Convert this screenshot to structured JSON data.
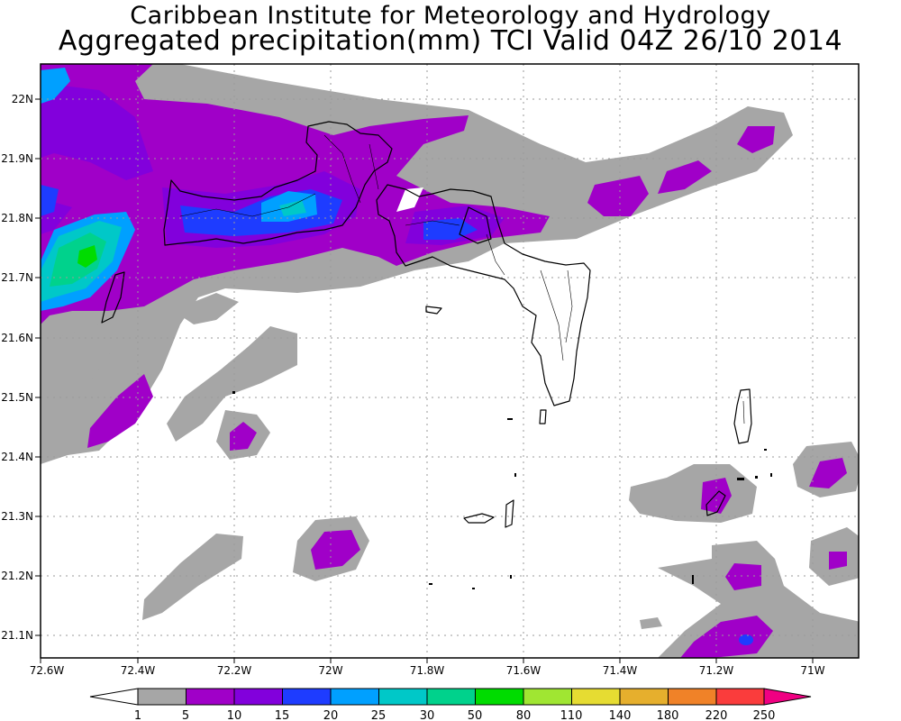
{
  "title": "Caribbean Institute for Meteorology and Hydrology",
  "subtitle": "Aggregated precipitation(mm) TCI Valid 04Z 26/10 2014",
  "map": {
    "lon_labels": [
      "72.6W",
      "72.4W",
      "72.2W",
      "72W",
      "71.8W",
      "71.6W",
      "71.4W",
      "71.2W",
      "71W"
    ],
    "lat_labels": [
      "22N",
      "21.9N",
      "21.8N",
      "21.7N",
      "21.6N",
      "21.5N",
      "21.4N",
      "21.3N",
      "21.2N",
      "21.1N"
    ],
    "lon_range": [
      -72.6,
      -70.9
    ],
    "lat_range": [
      21.06,
      22.06
    ],
    "grid": "dotted"
  },
  "legend": {
    "labels": [
      "1",
      "5",
      "10",
      "15",
      "20",
      "25",
      "30",
      "50",
      "80",
      "110",
      "140",
      "180",
      "220",
      "250"
    ],
    "colors": [
      "#a6a6a6",
      "#a000c8",
      "#8200dc",
      "#1e3cff",
      "#00a0ff",
      "#00c8c8",
      "#00d28c",
      "#00dc00",
      "#a0e632",
      "#e6dc32",
      "#e6af2d",
      "#f08228",
      "#fa3c3c",
      "#f00082"
    ]
  }
}
